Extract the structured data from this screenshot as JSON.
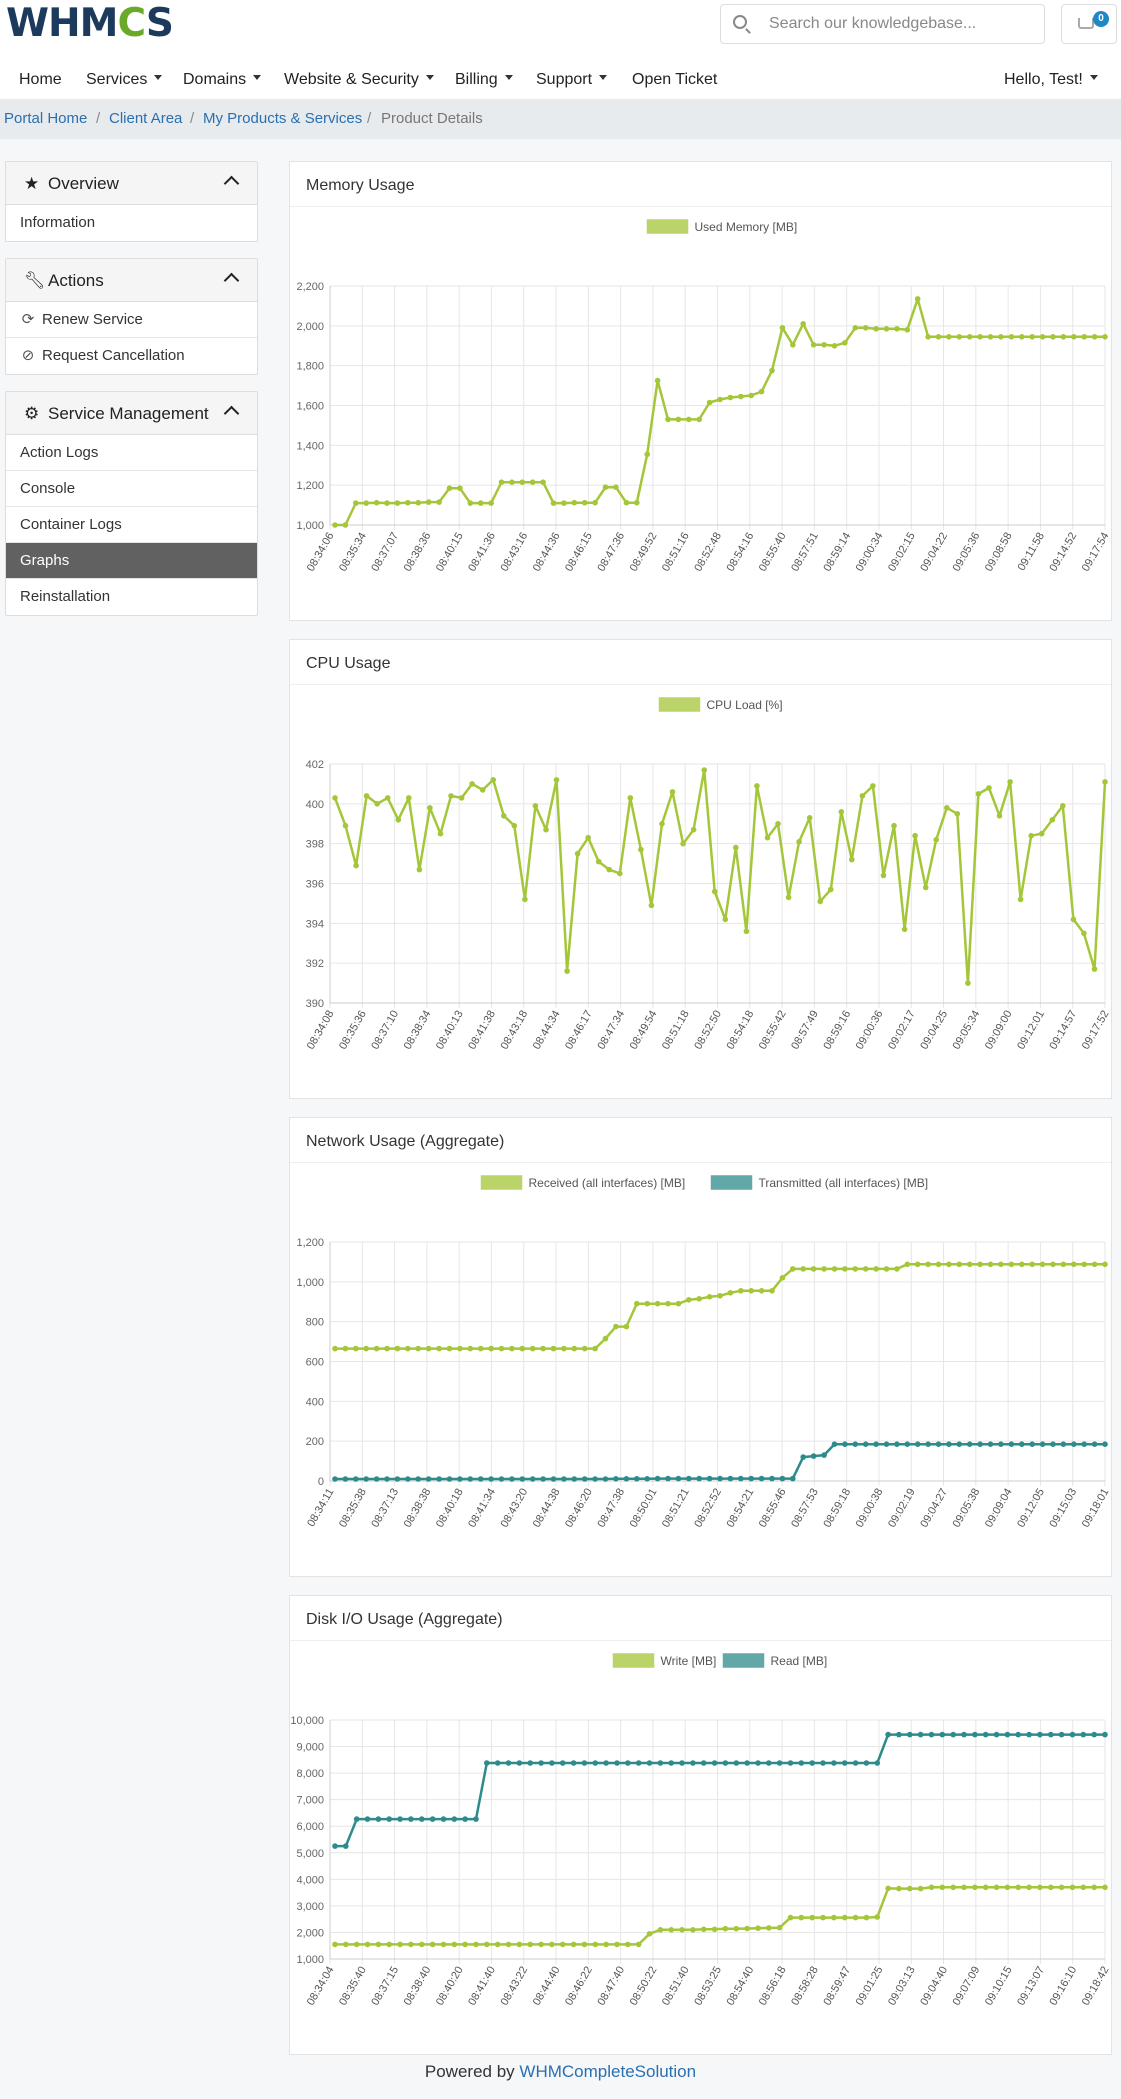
{
  "brand": {
    "name_a": "WHM",
    "name_b": "C",
    "name_c": "S"
  },
  "search": {
    "placeholder": "Search our knowledgebase..."
  },
  "cart": {
    "count": "0"
  },
  "nav": {
    "home": "Home",
    "services": "Services",
    "domains": "Domains",
    "website_security": "Website & Security",
    "billing": "Billing",
    "support": "Support",
    "open_ticket": "Open Ticket",
    "greeting": "Hello, Test!"
  },
  "breadcrumb": [
    "Portal Home",
    "Client Area",
    "My Products & Services",
    "Product Details"
  ],
  "sidebar": {
    "overview": {
      "title": "Overview",
      "items": [
        "Information"
      ]
    },
    "actions": {
      "title": "Actions",
      "items": [
        "Renew Service",
        "Request Cancellation"
      ]
    },
    "management": {
      "title": "Service Management",
      "items": [
        "Action Logs",
        "Console",
        "Container Logs",
        "Graphs",
        "Reinstallation"
      ],
      "active": "Graphs"
    }
  },
  "colors": {
    "green": "#a4c639",
    "teal": "#2e8b8b"
  },
  "chart_data": [
    {
      "type": "line",
      "title": "Memory Usage",
      "legend": [
        "Used Memory [MB]"
      ],
      "ylim": [
        1000,
        2200
      ],
      "yticks": [
        1000,
        1200,
        1400,
        1600,
        1800,
        2000,
        2200
      ],
      "xticks": [
        "08:34:06",
        "08:35:34",
        "08:37:07",
        "08:38:36",
        "08:40:15",
        "08:41:36",
        "08:43:16",
        "08:44:36",
        "08:46:15",
        "08:47:36",
        "08:49:52",
        "08:51:16",
        "08:52:48",
        "08:54:16",
        "08:55:40",
        "08:57:51",
        "08:59:14",
        "09:00:34",
        "09:02:15",
        "09:04:22",
        "09:05:36",
        "09:08:58",
        "09:11:58",
        "09:14:52",
        "09:17:54"
      ],
      "series": [
        {
          "name": "Used Memory [MB]",
          "color": "#a4c639",
          "values": [
            1000,
            1000,
            1110,
            1110,
            1112,
            1110,
            1110,
            1112,
            1112,
            1115,
            1115,
            1185,
            1185,
            1110,
            1110,
            1110,
            1215,
            1215,
            1215,
            1215,
            1215,
            1110,
            1110,
            1112,
            1112,
            1112,
            1190,
            1190,
            1112,
            1112,
            1355,
            1725,
            1530,
            1530,
            1530,
            1530,
            1615,
            1630,
            1640,
            1645,
            1650,
            1670,
            1775,
            1990,
            1905,
            2010,
            1905,
            1905,
            1900,
            1915,
            1990,
            1990,
            1985,
            1985,
            1985,
            1980,
            2135,
            1945,
            1945,
            1945,
            1945,
            1945,
            1945,
            1945,
            1945,
            1945,
            1945,
            1945,
            1945,
            1945,
            1945,
            1945,
            1945,
            1945,
            1945
          ]
        }
      ]
    },
    {
      "type": "line",
      "title": "CPU Usage",
      "legend": [
        "CPU Load [%]"
      ],
      "ylim": [
        390,
        402
      ],
      "yticks": [
        390,
        392,
        394,
        396,
        398,
        400,
        402
      ],
      "xticks": [
        "08:34:08",
        "08:35:36",
        "08:37:10",
        "08:38:34",
        "08:40:13",
        "08:41:38",
        "08:43:18",
        "08:44:34",
        "08:46:17",
        "08:47:34",
        "08:49:54",
        "08:51:18",
        "08:52:50",
        "08:54:18",
        "08:55:42",
        "08:57:49",
        "08:59:16",
        "09:00:36",
        "09:02:17",
        "09:04:25",
        "09:05:34",
        "09:09:00",
        "09:12:01",
        "09:14:57",
        "09:17:52"
      ],
      "series": [
        {
          "name": "CPU Load [%]",
          "color": "#a4c639",
          "values": [
            400.3,
            398.9,
            396.9,
            400.4,
            400.0,
            400.3,
            399.2,
            400.3,
            396.7,
            399.8,
            398.5,
            400.4,
            400.3,
            401.0,
            400.7,
            401.2,
            399.4,
            398.9,
            395.2,
            399.9,
            398.7,
            401.2,
            391.6,
            397.5,
            398.3,
            397.1,
            396.7,
            396.5,
            400.3,
            397.7,
            394.9,
            399.0,
            400.6,
            398.0,
            398.7,
            401.7,
            395.6,
            394.2,
            397.8,
            393.6,
            400.9,
            398.3,
            399.0,
            395.3,
            398.1,
            399.3,
            395.1,
            395.7,
            399.6,
            397.2,
            400.4,
            400.9,
            396.4,
            398.9,
            393.7,
            398.4,
            395.8,
            398.2,
            399.8,
            399.5,
            391.0,
            400.5,
            400.8,
            399.4,
            401.1,
            395.2,
            398.4,
            398.5,
            399.2,
            399.9,
            394.2,
            393.5,
            391.7,
            401.1
          ]
        }
      ]
    },
    {
      "type": "line",
      "title": "Network Usage (Aggregate)",
      "legend": [
        "Received (all interfaces) [MB]",
        "Transmitted (all interfaces) [MB]"
      ],
      "ylim": [
        0,
        1200
      ],
      "yticks": [
        0,
        200,
        400,
        600,
        800,
        1000,
        1200
      ],
      "xticks": [
        "08:34:11",
        "08:35:38",
        "08:37:13",
        "08:38:38",
        "08:40:18",
        "08:41:34",
        "08:43:20",
        "08:44:38",
        "08:46:20",
        "08:47:38",
        "08:50:01",
        "08:51:21",
        "08:52:52",
        "08:54:21",
        "08:55:46",
        "08:57:53",
        "08:59:18",
        "09:00:38",
        "09:02:19",
        "09:04:27",
        "09:05:38",
        "09:09:04",
        "09:12:05",
        "09:15:03",
        "09:18:01"
      ],
      "series": [
        {
          "name": "Received (all interfaces) [MB]",
          "color": "#a4c639",
          "values": [
            665,
            665,
            665,
            665,
            665,
            665,
            665,
            665,
            665,
            665,
            665,
            665,
            665,
            665,
            665,
            665,
            665,
            665,
            665,
            665,
            665,
            665,
            665,
            665,
            665,
            665,
            715,
            775,
            775,
            890,
            890,
            890,
            890,
            890,
            910,
            915,
            925,
            930,
            945,
            955,
            955,
            955,
            955,
            1020,
            1065,
            1065,
            1065,
            1065,
            1065,
            1065,
            1065,
            1065,
            1065,
            1065,
            1065,
            1088,
            1088,
            1088,
            1088,
            1088,
            1088,
            1088,
            1088,
            1088,
            1088,
            1088,
            1088,
            1088,
            1088,
            1088,
            1088,
            1088,
            1088,
            1088,
            1088
          ]
        },
        {
          "name": "Transmitted (all interfaces) [MB]",
          "color": "#2e8b8b",
          "values": [
            10,
            10,
            10,
            10,
            10,
            10,
            10,
            10,
            10,
            10,
            10,
            10,
            10,
            10,
            10,
            10,
            10,
            10,
            10,
            10,
            10,
            10,
            10,
            10,
            10,
            10,
            10,
            11,
            11,
            11,
            11,
            12,
            12,
            12,
            12,
            12,
            12,
            12,
            12,
            12,
            12,
            12,
            12,
            12,
            12,
            120,
            125,
            130,
            185,
            185,
            185,
            185,
            185,
            185,
            185,
            185,
            185,
            185,
            185,
            185,
            185,
            185,
            185,
            185,
            185,
            185,
            185,
            185,
            185,
            185,
            185,
            185,
            185,
            185,
            185
          ]
        }
      ]
    },
    {
      "type": "line",
      "title": "Disk I/O Usage (Aggregate)",
      "legend": [
        "Write [MB]",
        "Read [MB]"
      ],
      "ylim": [
        1000,
        10000
      ],
      "yticks": [
        1000,
        2000,
        3000,
        4000,
        5000,
        6000,
        7000,
        8000,
        9000,
        10000
      ],
      "xticks": [
        "08:34:04",
        "08:35:40",
        "08:37:15",
        "08:38:40",
        "08:40:20",
        "08:41:40",
        "08:43:22",
        "08:44:40",
        "08:46:22",
        "08:47:40",
        "08:50:22",
        "08:51:40",
        "08:53:25",
        "08:54:40",
        "08:56:18",
        "08:58:28",
        "08:59:47",
        "09:01:25",
        "09:03:13",
        "09:04:40",
        "09:07:09",
        "09:10:15",
        "09:13:07",
        "09:16:10",
        "09:18:42"
      ],
      "series": [
        {
          "name": "Write [MB]",
          "color": "#a4c639",
          "values": [
            1550,
            1550,
            1550,
            1550,
            1550,
            1550,
            1550,
            1550,
            1550,
            1550,
            1550,
            1550,
            1550,
            1550,
            1550,
            1550,
            1550,
            1550,
            1550,
            1550,
            1550,
            1550,
            1550,
            1550,
            1550,
            1550,
            1550,
            1550,
            1550,
            1950,
            2100,
            2100,
            2100,
            2100,
            2120,
            2120,
            2140,
            2140,
            2150,
            2160,
            2170,
            2180,
            2560,
            2560,
            2560,
            2560,
            2560,
            2560,
            2560,
            2560,
            2580,
            3660,
            3650,
            3650,
            3650,
            3700,
            3700,
            3700,
            3700,
            3700,
            3700,
            3700,
            3700,
            3700,
            3700,
            3700,
            3700,
            3700,
            3700,
            3700,
            3700,
            3700
          ]
        },
        {
          "name": "Read [MB]",
          "color": "#2e8b8b",
          "values": [
            5250,
            5250,
            6270,
            6270,
            6270,
            6270,
            6270,
            6270,
            6270,
            6270,
            6270,
            6270,
            6270,
            6270,
            8380,
            8380,
            8380,
            8380,
            8380,
            8380,
            8380,
            8380,
            8380,
            8380,
            8380,
            8380,
            8380,
            8380,
            8380,
            8380,
            8380,
            8380,
            8380,
            8380,
            8380,
            8380,
            8380,
            8380,
            8380,
            8380,
            8380,
            8380,
            8380,
            8380,
            8380,
            8380,
            8380,
            8380,
            8380,
            8380,
            8380,
            9450,
            9450,
            9450,
            9450,
            9450,
            9450,
            9450,
            9450,
            9450,
            9450,
            9450,
            9450,
            9450,
            9450,
            9450,
            9450,
            9450,
            9450,
            9450,
            9450,
            9450
          ]
        }
      ]
    }
  ],
  "footer": {
    "prefix": "Powered by",
    "link": "WHMCompleteSolution"
  }
}
